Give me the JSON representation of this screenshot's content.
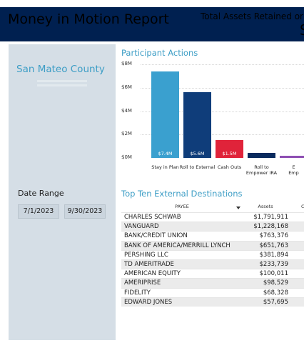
{
  "header": {
    "title": "Money in Motion Report",
    "kpi_label": "Total Assets Retained or A",
    "kpi_value": "S"
  },
  "left_panel": {
    "county": "San Mateo County",
    "date_range_label": "Date Range",
    "start_date": "7/1/2023",
    "end_date": "9/30/2023"
  },
  "participant_actions": {
    "title": "Participant Actions"
  },
  "chart_data": {
    "type": "bar",
    "title": "Participant Actions",
    "categories": [
      "Stay in Plan",
      "Roll to External",
      "Cash Outs",
      "Roll to Empower IRA",
      "Emp"
    ],
    "category_lines": [
      [
        "Stay in Plan"
      ],
      [
        "Roll to External"
      ],
      [
        "Cash Outs"
      ],
      [
        "Roll to",
        "Empower IRA"
      ],
      [
        "E",
        "Emp"
      ]
    ],
    "values": [
      7.4,
      5.6,
      1.5,
      0.4,
      0.2
    ],
    "value_labels": [
      "$7.4M",
      "$5.6M",
      "$1.5M",
      "",
      ""
    ],
    "colors": [
      "#3aa0cf",
      "#0f3d7a",
      "#e0233a",
      "#0a2a5e",
      "#8e4fb3"
    ],
    "y_ticks": [
      "$0M",
      "$2M",
      "$4M",
      "$6M",
      "$8M"
    ],
    "ylim": [
      0,
      8
    ],
    "grid": true
  },
  "destinations": {
    "title": "Top Ten External Destinations",
    "columns": {
      "payee": "PAYEE",
      "assets": "Assets",
      "third": "C"
    },
    "rows": [
      {
        "payee": "CHARLES SCHWAB",
        "assets": "$1,791,911"
      },
      {
        "payee": "VANGUARD",
        "assets": "$1,228,168"
      },
      {
        "payee": "BANK/CREDIT UNION",
        "assets": "$763,376"
      },
      {
        "payee": "BANK OF AMERICA/MERRILL LYNCH",
        "assets": "$651,763"
      },
      {
        "payee": "PERSHING LLC",
        "assets": "$381,894"
      },
      {
        "payee": "TD AMERITRADE",
        "assets": "$233,739"
      },
      {
        "payee": "AMERICAN EQUITY",
        "assets": "$100,011"
      },
      {
        "payee": "AMERIPRISE",
        "assets": "$98,529"
      },
      {
        "payee": "FIDELITY",
        "assets": "$68,328"
      },
      {
        "payee": "EDWARD JONES",
        "assets": "$57,695"
      }
    ]
  }
}
